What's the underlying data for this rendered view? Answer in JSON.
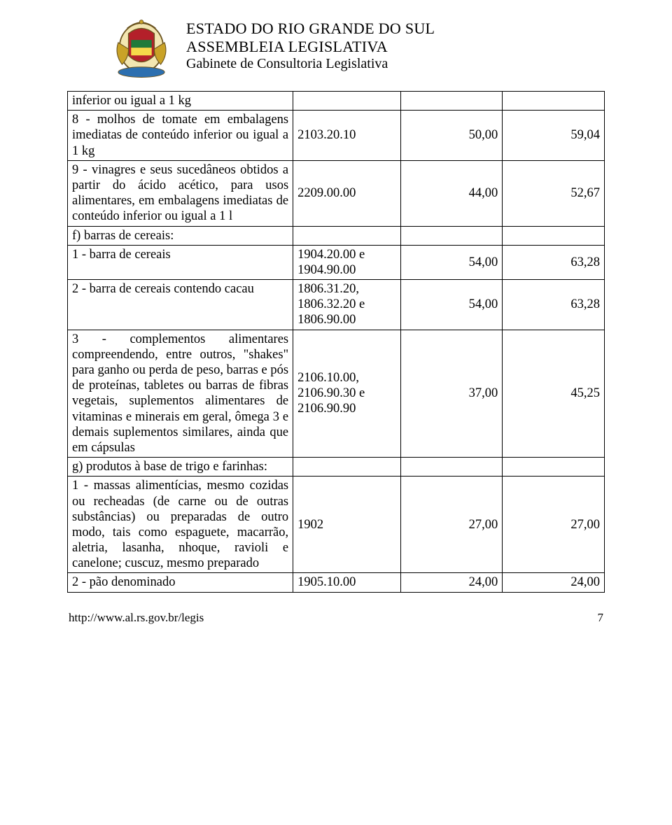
{
  "header": {
    "line1": "ESTADO DO RIO GRANDE DO SUL",
    "line2": "ASSEMBLEIA LEGISLATIVA",
    "line3": "Gabinete de Consultoria Legislativa"
  },
  "table": {
    "rows": [
      {
        "desc": "inferior ou igual a 1 kg",
        "code": "",
        "v1": "",
        "v2": ""
      },
      {
        "desc": "8 - molhos de tomate em embalagens imediatas de conteúdo inferior ou igual a 1 kg",
        "code": "2103.20.10",
        "v1": "50,00",
        "v2": "59,04"
      },
      {
        "desc": "9 - vinagres e seus sucedâneos obtidos a partir do ácido acético, para usos alimentares, em embalagens imediatas de conteúdo inferior ou igual a 1 l",
        "code": "2209.00.00",
        "v1": "44,00",
        "v2": "52,67"
      },
      {
        "desc": "f) barras de cereais:",
        "code": "",
        "v1": "",
        "v2": ""
      },
      {
        "desc": "1 - barra de cereais",
        "code": "1904.20.00 e 1904.90.00",
        "v1": "54,00",
        "v2": "63,28"
      },
      {
        "desc": "2 - barra de cereais contendo cacau",
        "code": "1806.31.20, 1806.32.20 e 1806.90.00",
        "v1": "54,00",
        "v2": "63,28"
      },
      {
        "desc": "3 - complementos alimentares compreendendo, entre outros, \"shakes\" para ganho ou perda de peso, barras e pós de proteínas, tabletes ou barras de fibras vegetais, suplementos alimentares de vitaminas e minerais em geral, ômega 3 e demais suplementos similares, ainda que em cápsulas",
        "code": "2106.10.00, 2106.90.30 e 2106.90.90",
        "v1": "37,00",
        "v2": "45,25"
      },
      {
        "desc": "g) produtos à base de trigo e farinhas:",
        "code": "",
        "v1": "",
        "v2": ""
      },
      {
        "desc": "1 - massas alimentícias, mesmo cozidas ou recheadas (de carne ou de outras substâncias) ou preparadas de outro modo, tais como espaguete, macarrão, aletria, lasanha, nhoque, ravioli e canelone; cuscuz, mesmo preparado",
        "code": "1902",
        "v1": "27,00",
        "v2": "27,00"
      },
      {
        "desc": "2 - pão denominado",
        "code": "1905.10.00",
        "v1": "24,00",
        "v2": "24,00"
      }
    ]
  },
  "footer": {
    "url": "http://www.al.rs.gov.br/legis",
    "page": "7"
  },
  "style": {
    "crest_colors": {
      "gold": "#c9a227",
      "red": "#b4202a",
      "green": "#1f7a3a",
      "blue": "#2c6fb0",
      "outline": "#6b5420"
    }
  }
}
